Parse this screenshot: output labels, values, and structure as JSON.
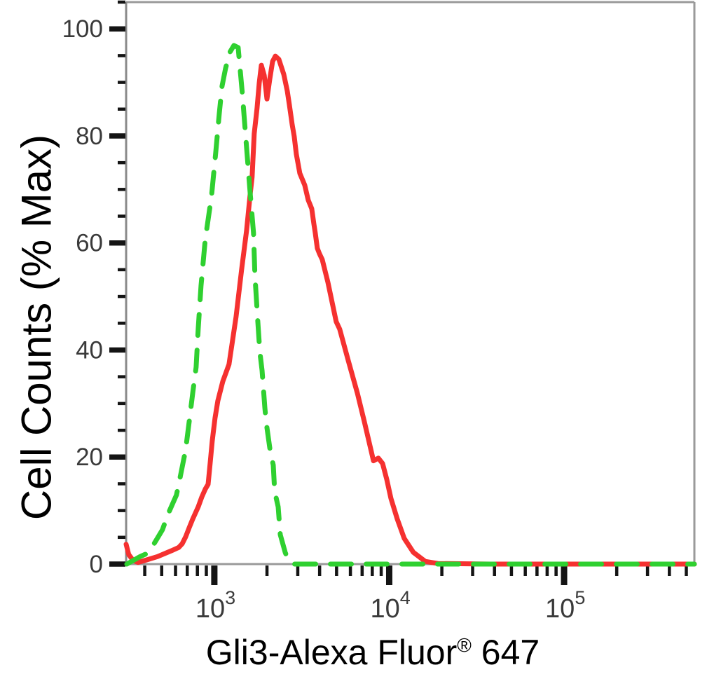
{
  "figure": {
    "y_axis": {
      "title": "Cell Counts (% Max)",
      "major_ticks": [
        0,
        20,
        40,
        60,
        80,
        100
      ],
      "minor_step": 5,
      "max": 105
    },
    "x_axis": {
      "title_main": "Gli3-Alexa Fluor",
      "title_registered": "®",
      "title_suffix": " 647",
      "scale": "log",
      "tick_labels": [
        {
          "base": "10",
          "exp": "3",
          "value": 1000
        },
        {
          "base": "10",
          "exp": "4",
          "value": 10000
        },
        {
          "base": "10",
          "exp": "5",
          "value": 100000
        }
      ]
    },
    "colors": {
      "red_solid": "#f53130",
      "green_dashed": "#2fd030",
      "frame_gray": "#9a9a9a",
      "tick_black": "#141414",
      "tick_label_gray": "#3a3a3a"
    }
  },
  "chart_data": {
    "type": "line",
    "title": "",
    "xlabel": "Gli3-Alexa Fluor® 647",
    "ylabel": "Cell Counts (% Max)",
    "x_scale": "log10",
    "xlim": [
      313,
      556000
    ],
    "ylim": [
      0,
      105
    ],
    "grid": false,
    "legend": "none",
    "series": [
      {
        "name": "green-dashed-histogram",
        "style": "dashed",
        "color": "#2fd030",
        "peak": {
          "x": 1294,
          "y": 96.9
        },
        "points": [
          [
            316,
            0
          ],
          [
            376,
            1.4
          ],
          [
            420,
            2.1
          ],
          [
            460,
            4.2
          ],
          [
            505,
            6.4
          ],
          [
            543,
            9.3
          ],
          [
            607,
            12.9
          ],
          [
            641,
            16.6
          ],
          [
            686,
            21.4
          ],
          [
            718,
            26.6
          ],
          [
            752,
            31.9
          ],
          [
            787,
            36.8
          ],
          [
            809,
            44.0
          ],
          [
            839,
            52.0
          ],
          [
            887,
            60.6
          ],
          [
            964,
            68.8
          ],
          [
            1019,
            76.9
          ],
          [
            1067,
            84.1
          ],
          [
            1107,
            89.3
          ],
          [
            1159,
            92.6
          ],
          [
            1225,
            95.6
          ],
          [
            1294,
            96.9
          ],
          [
            1368,
            96.5
          ],
          [
            1445,
            88.0
          ],
          [
            1514,
            79.5
          ],
          [
            1600,
            69.7
          ],
          [
            1675,
            61.9
          ],
          [
            1706,
            54.0
          ],
          [
            1770,
            45.6
          ],
          [
            1820,
            39.7
          ],
          [
            1875,
            36.2
          ],
          [
            1945,
            29.2
          ],
          [
            1982,
            26.4
          ],
          [
            2094,
            20.8
          ],
          [
            2173,
            18.5
          ],
          [
            2213,
            13.6
          ],
          [
            2317,
            10.7
          ],
          [
            2382,
            5.5
          ],
          [
            2541,
            2.2
          ],
          [
            2661,
            0.5
          ],
          [
            2864,
            0
          ],
          [
            556000,
            0
          ]
        ]
      },
      {
        "name": "red-solid-histogram",
        "style": "solid",
        "color": "#f53130",
        "peak": {
          "x": 2234,
          "y": 94.9
        },
        "points": [
          [
            313,
            3.7
          ],
          [
            324,
            1.8
          ],
          [
            343,
            0.7
          ],
          [
            366,
            0.3
          ],
          [
            412,
            0.8
          ],
          [
            473,
            1.4
          ],
          [
            569,
            2.5
          ],
          [
            625,
            3.1
          ],
          [
            655,
            3.8
          ],
          [
            686,
            5.1
          ],
          [
            718,
            6.8
          ],
          [
            752,
            8.4
          ],
          [
            809,
            10.7
          ],
          [
            847,
            12.5
          ],
          [
            887,
            14.0
          ],
          [
            921,
            14.9
          ],
          [
            946,
            18.8
          ],
          [
            973,
            23.0
          ],
          [
            1009,
            27.3
          ],
          [
            1047,
            30.5
          ],
          [
            1117,
            34.1
          ],
          [
            1213,
            37.3
          ],
          [
            1331,
            46.2
          ],
          [
            1432,
            55.0
          ],
          [
            1528,
            62.3
          ],
          [
            1600,
            68.8
          ],
          [
            1645,
            72.3
          ],
          [
            1690,
            80.4
          ],
          [
            1754,
            85.1
          ],
          [
            1807,
            89.9
          ],
          [
            1858,
            93.2
          ],
          [
            1928,
            91.3
          ],
          [
            2000,
            86.9
          ],
          [
            2075,
            90.6
          ],
          [
            2153,
            93.9
          ],
          [
            2234,
            94.9
          ],
          [
            2339,
            94.3
          ],
          [
            2495,
            91.5
          ],
          [
            2612,
            88.4
          ],
          [
            2685,
            85.8
          ],
          [
            2786,
            82.1
          ],
          [
            2864,
            79.9
          ],
          [
            2944,
            76.6
          ],
          [
            3083,
            73.0
          ],
          [
            3289,
            70.8
          ],
          [
            3443,
            68.0
          ],
          [
            3606,
            66.4
          ],
          [
            3707,
            63.6
          ],
          [
            3776,
            61.9
          ],
          [
            3882,
            59.0
          ],
          [
            3990,
            58.0
          ],
          [
            4140,
            56.9
          ],
          [
            4457,
            52.7
          ],
          [
            4977,
            45.3
          ],
          [
            5212,
            43.9
          ],
          [
            5834,
            38.0
          ],
          [
            6577,
            31.9
          ],
          [
            7211,
            26.6
          ],
          [
            7907,
            21.0
          ],
          [
            8128,
            19.3
          ],
          [
            8670,
            19.8
          ],
          [
            9162,
            18.8
          ],
          [
            9683,
            15.8
          ],
          [
            10230,
            12.3
          ],
          [
            11120,
            8.4
          ],
          [
            12190,
            4.8
          ],
          [
            13740,
            2.2
          ],
          [
            16070,
            0.5
          ],
          [
            19010,
            0.1
          ],
          [
            37930,
            0
          ],
          [
            556000,
            0
          ]
        ]
      }
    ]
  }
}
